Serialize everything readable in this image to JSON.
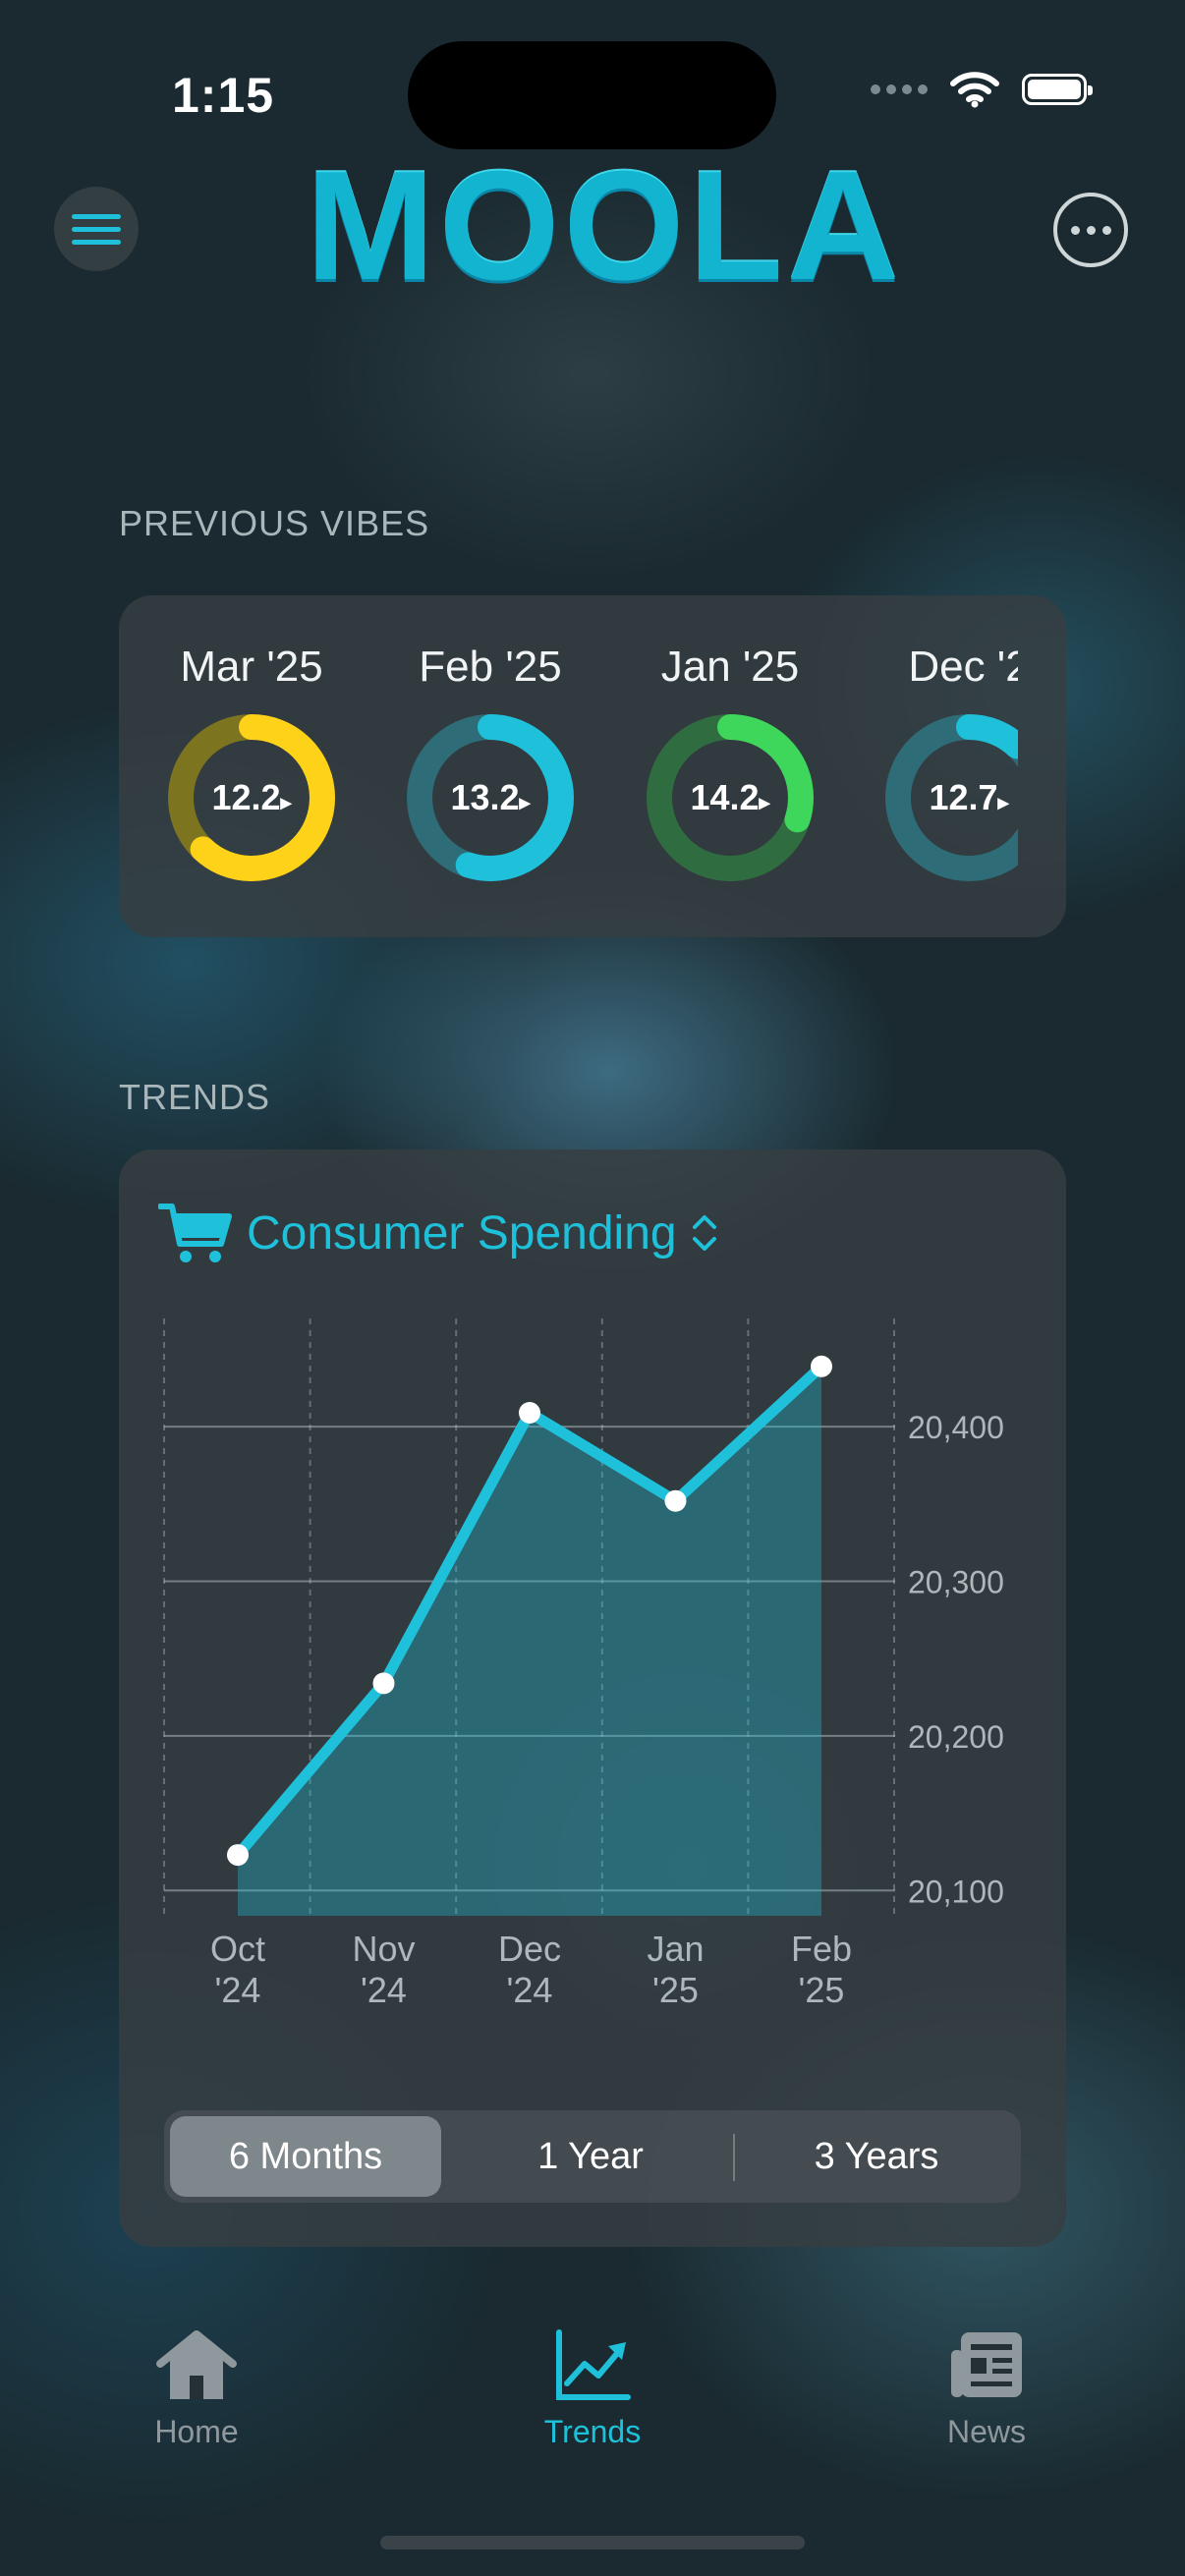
{
  "status": {
    "time": "1:15"
  },
  "app": {
    "logo": "MOOLA",
    "accent": "#1fc1da"
  },
  "sections": {
    "vibes": "PREVIOUS VIBES",
    "trends": "TRENDS"
  },
  "vibes": [
    {
      "label": "Mar '25",
      "value": "12.2",
      "color": "#ffd21a",
      "track": "#7d7420",
      "progress": 0.62
    },
    {
      "label": "Feb '25",
      "value": "13.2",
      "color": "#1fc1da",
      "track": "#2e6c78",
      "progress": 0.55
    },
    {
      "label": "Jan '25",
      "value": "14.2",
      "color": "#3fd65c",
      "track": "#2f6d40",
      "progress": 0.3
    },
    {
      "label": "Dec '2",
      "value": "12.7",
      "color": "#1fc1da",
      "track": "#2e6c78",
      "progress": 0.12
    }
  ],
  "trends": {
    "icon": "cart-icon",
    "title": "Consumer Spending",
    "ranges": [
      "6 Months",
      "1 Year",
      "3 Years"
    ],
    "selected_range": "6 Months"
  },
  "chart_data": {
    "type": "area",
    "x": [
      "Oct '24",
      "Nov '24",
      "Dec '24",
      "Jan '25",
      "Feb '25"
    ],
    "x_tick_labels": [
      [
        "Oct",
        "'24"
      ],
      [
        "Nov",
        "'24"
      ],
      [
        "Dec",
        "'24"
      ],
      [
        "Jan",
        "'25"
      ],
      [
        "Feb",
        "'25"
      ]
    ],
    "values": [
      20123,
      20234,
      20409,
      20352,
      20439
    ],
    "yticks": [
      "20,100",
      "20,200",
      "20,300",
      "20,400"
    ],
    "ytick_values": [
      20100,
      20200,
      20300,
      20400
    ],
    "ylim": [
      20090,
      20470
    ],
    "y_axis_position": "right",
    "grid": true,
    "line_color": "#1fc1da"
  },
  "tabs": [
    {
      "label": "Home",
      "icon": "house-icon",
      "active": false
    },
    {
      "label": "Trends",
      "icon": "trend-chart-icon",
      "active": true
    },
    {
      "label": "News",
      "icon": "newspaper-icon",
      "active": false
    }
  ]
}
